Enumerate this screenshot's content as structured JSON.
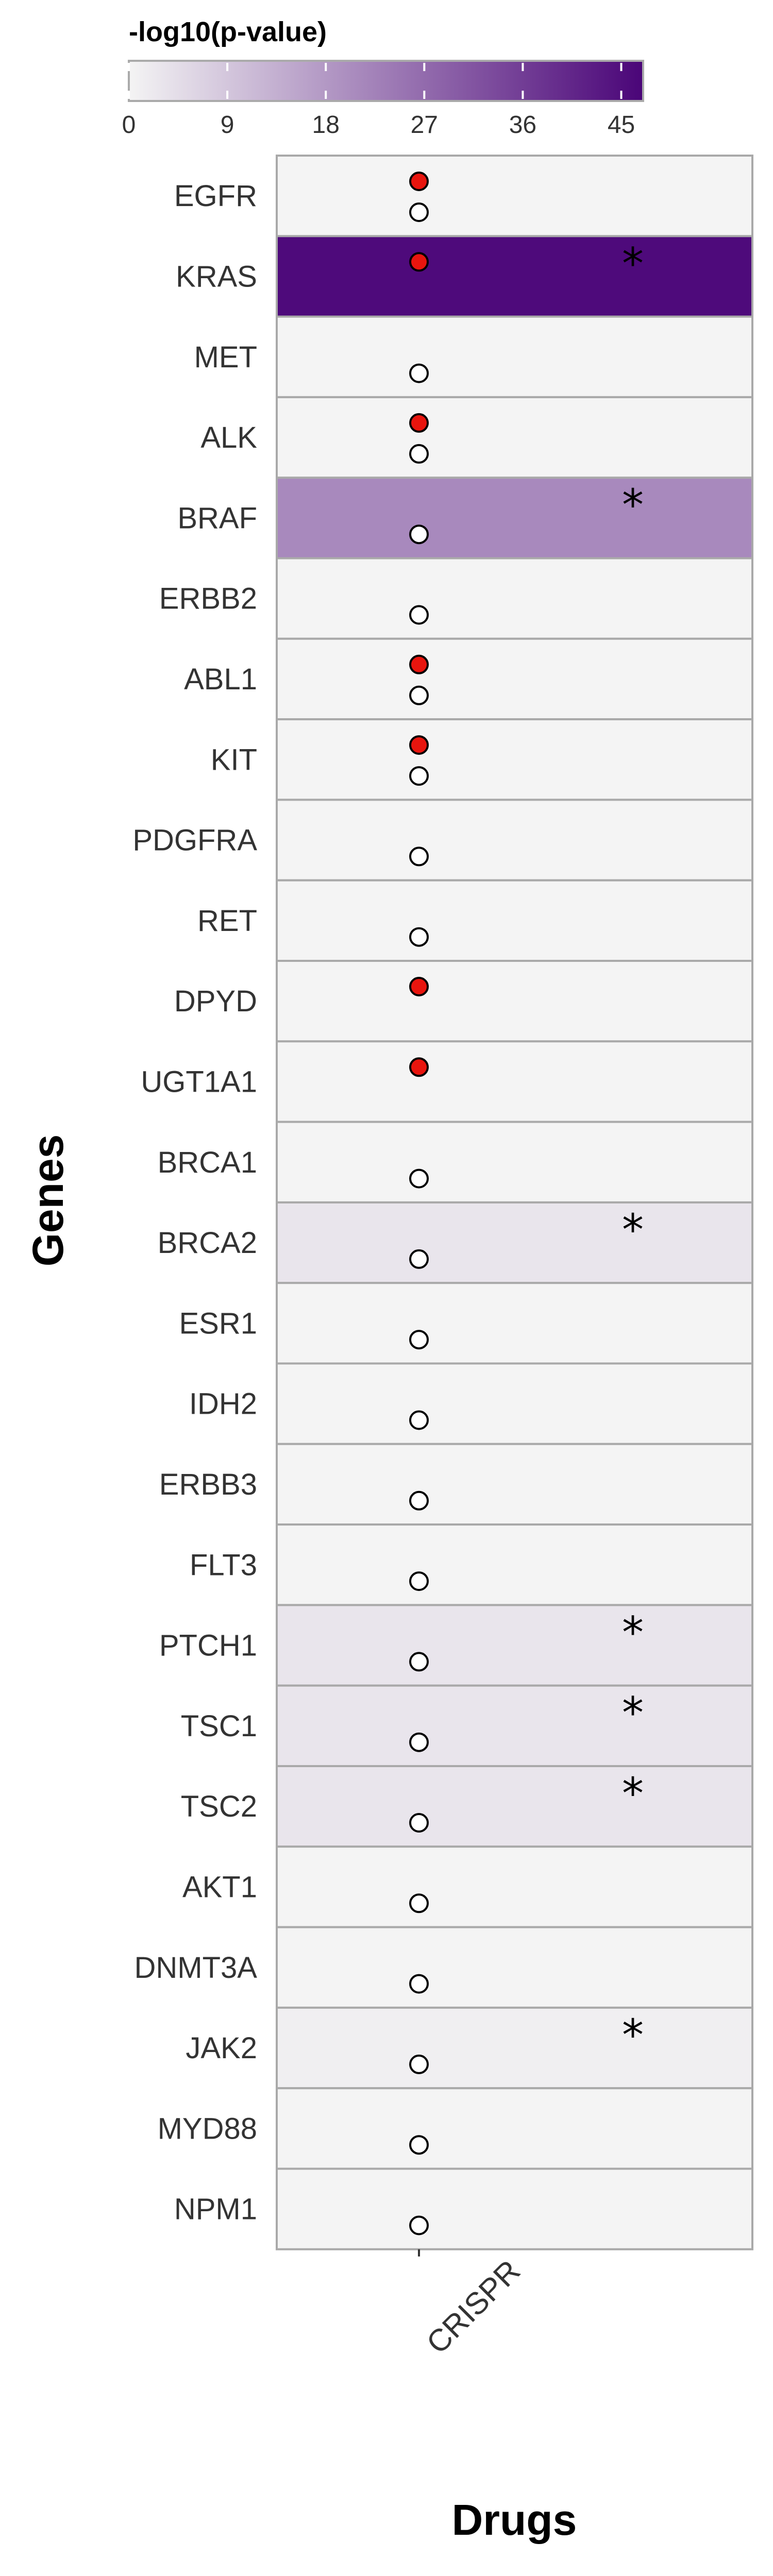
{
  "chart_data": {
    "type": "heatmap",
    "title": "",
    "xlabel": "Drugs",
    "ylabel": "Genes",
    "x_categories": [
      "CRISPR"
    ],
    "colorbar": {
      "title": "-log10(p-value)",
      "ticks": [
        "0",
        "9",
        "18",
        "27",
        "36",
        "45"
      ],
      "range": [
        0,
        47
      ],
      "color_low": "#f4f4f4",
      "color_high": "#4a0578"
    },
    "marker_colors": {
      "filled": "#e8150e",
      "open": "#ffffff"
    },
    "rows": [
      {
        "gene": "EGFR",
        "value": 0,
        "red_dot": true,
        "open_dot": true,
        "star": false
      },
      {
        "gene": "KRAS",
        "value": 46,
        "red_dot": true,
        "open_dot": false,
        "star": true
      },
      {
        "gene": "MET",
        "value": 0,
        "red_dot": false,
        "open_dot": true,
        "star": false
      },
      {
        "gene": "ALK",
        "value": 0,
        "red_dot": true,
        "open_dot": true,
        "star": false
      },
      {
        "gene": "BRAF",
        "value": 21,
        "red_dot": false,
        "open_dot": true,
        "star": true
      },
      {
        "gene": "ERBB2",
        "value": 0,
        "red_dot": false,
        "open_dot": true,
        "star": false
      },
      {
        "gene": "ABL1",
        "value": 0,
        "red_dot": true,
        "open_dot": true,
        "star": false
      },
      {
        "gene": "KIT",
        "value": 0,
        "red_dot": true,
        "open_dot": true,
        "star": false
      },
      {
        "gene": "PDGFRA",
        "value": 0,
        "red_dot": false,
        "open_dot": true,
        "star": false
      },
      {
        "gene": "RET",
        "value": 0,
        "red_dot": false,
        "open_dot": true,
        "star": false
      },
      {
        "gene": "DPYD",
        "value": 0,
        "red_dot": true,
        "open_dot": false,
        "star": false
      },
      {
        "gene": "UGT1A1",
        "value": 0,
        "red_dot": true,
        "open_dot": false,
        "star": false
      },
      {
        "gene": "BRCA1",
        "value": 0,
        "red_dot": false,
        "open_dot": true,
        "star": false
      },
      {
        "gene": "BRCA2",
        "value": 3,
        "red_dot": false,
        "open_dot": true,
        "star": true
      },
      {
        "gene": "ESR1",
        "value": 0,
        "red_dot": false,
        "open_dot": true,
        "star": false
      },
      {
        "gene": "IDH2",
        "value": 0,
        "red_dot": false,
        "open_dot": true,
        "star": false
      },
      {
        "gene": "ERBB3",
        "value": 0,
        "red_dot": false,
        "open_dot": true,
        "star": false
      },
      {
        "gene": "FLT3",
        "value": 0,
        "red_dot": false,
        "open_dot": true,
        "star": false
      },
      {
        "gene": "PTCH1",
        "value": 3,
        "red_dot": false,
        "open_dot": true,
        "star": true
      },
      {
        "gene": "TSC1",
        "value": 3,
        "red_dot": false,
        "open_dot": true,
        "star": true
      },
      {
        "gene": "TSC2",
        "value": 3,
        "red_dot": false,
        "open_dot": true,
        "star": true
      },
      {
        "gene": "AKT1",
        "value": 0,
        "red_dot": false,
        "open_dot": true,
        "star": false
      },
      {
        "gene": "DNMT3A",
        "value": 0,
        "red_dot": false,
        "open_dot": true,
        "star": false
      },
      {
        "gene": "JAK2",
        "value": 1,
        "red_dot": false,
        "open_dot": true,
        "star": true
      },
      {
        "gene": "MYD88",
        "value": 0,
        "red_dot": false,
        "open_dot": true,
        "star": false
      },
      {
        "gene": "NPM1",
        "value": 0,
        "red_dot": false,
        "open_dot": true,
        "star": false
      }
    ]
  }
}
